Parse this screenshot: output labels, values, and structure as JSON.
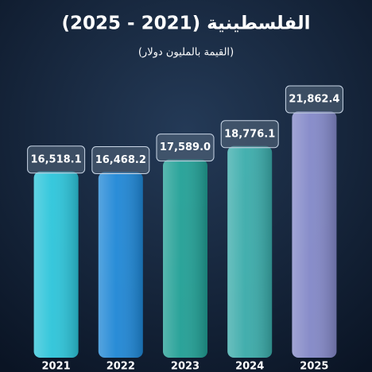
{
  "chart_data": {
    "type": "bar",
    "title": "الفلسطينية (2021 - 2025)",
    "subtitle": "(القيمة بالمليون دولار)",
    "categories": [
      "2021",
      "2022",
      "2023",
      "2024",
      "2025"
    ],
    "values": [
      16518.1,
      16468.2,
      17589.0,
      18776.1,
      21862.4
    ],
    "value_labels": [
      "16,518.1",
      "16,468.2",
      "17,589.0",
      "18,776.1",
      "21,862.4"
    ],
    "colors": [
      "#2fd3e8",
      "#1f8fe3",
      "#22a99c",
      "#3db6b3",
      "#8c90d4"
    ]
  }
}
